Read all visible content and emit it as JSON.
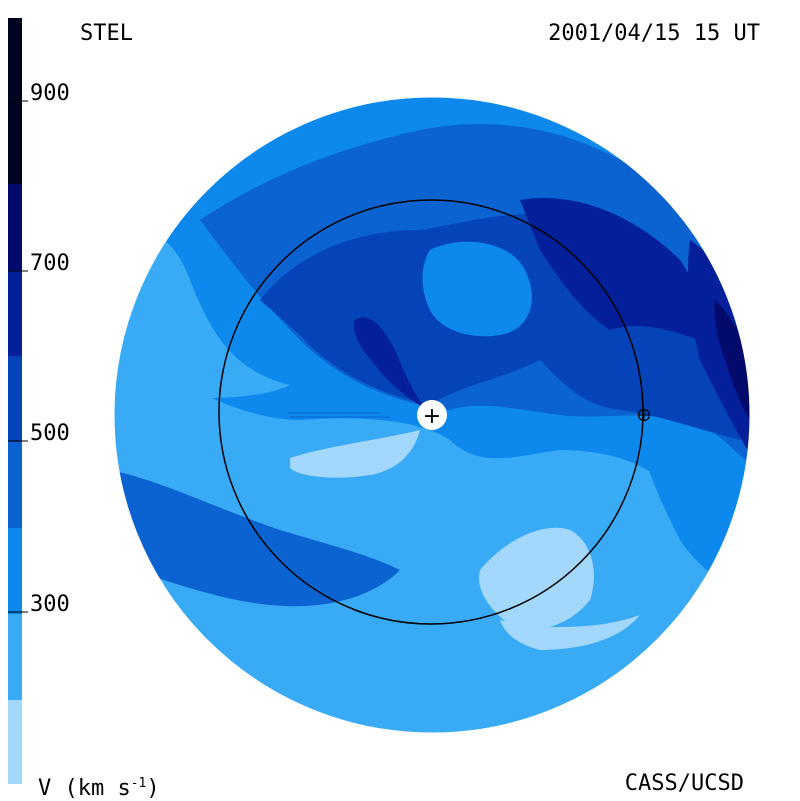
{
  "header": {
    "source": "STEL",
    "timestamp": "2001/04/15 15 UT"
  },
  "footer": {
    "quantity_label": "V (km s",
    "quantity_exp": "-1",
    "quantity_close": ")",
    "credit": "CASS/UCSD"
  },
  "colorbar": {
    "tick_labels": [
      "900",
      "700",
      "500",
      "300"
    ],
    "levels": [
      "#a3d7fb",
      "#38aaf6",
      "#0d88ec",
      "#0a63d1",
      "#0443b8",
      "#031f99",
      "#020b6c",
      "#010522"
    ]
  },
  "colors": {
    "c1": "#a3d7fb",
    "c2": "#38aaf6",
    "c3": "#0d88ec",
    "c4": "#0a63d1",
    "c5": "#0443b8",
    "c6": "#031f99",
    "c7": "#020b6c"
  },
  "markers": {
    "sun_symbol": "+",
    "earth_symbol": "⊕"
  }
}
